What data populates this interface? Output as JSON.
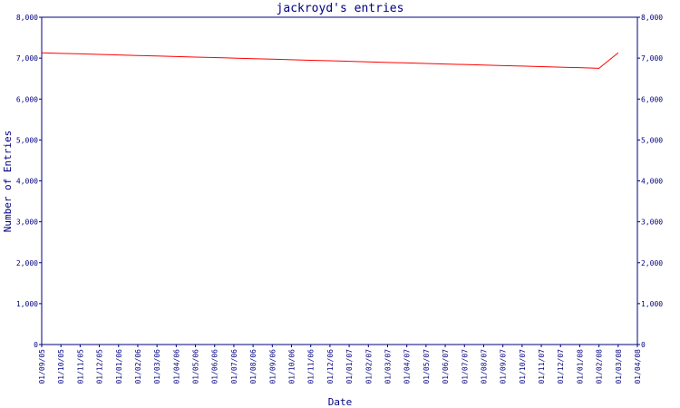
{
  "chart_data": {
    "type": "line",
    "title": "jackroyd's entries",
    "x_label": "Date",
    "y_label": "Number of Entries",
    "categories": [
      "01/09/05",
      "01/10/05",
      "01/11/05",
      "01/12/05",
      "01/01/06",
      "01/02/06",
      "01/03/06",
      "01/04/06",
      "01/05/06",
      "01/06/06",
      "01/07/06",
      "01/08/06",
      "01/09/06",
      "01/10/06",
      "01/11/06",
      "01/12/06",
      "01/01/07",
      "01/02/07",
      "01/03/07",
      "01/04/07",
      "01/05/07",
      "01/06/07",
      "01/07/07",
      "01/08/07",
      "01/09/07",
      "01/10/07",
      "01/11/07",
      "01/12/07",
      "01/01/08",
      "01/02/08",
      "01/03/08",
      "01/04/08"
    ],
    "series": [
      {
        "name": "entries",
        "color": "#ff0000",
        "values": [
          7130,
          7117,
          7104,
          7091,
          7078,
          7065,
          7052,
          7039,
          7026,
          7013,
          7000,
          6987,
          6974,
          6961,
          6948,
          6935,
          6922,
          6909,
          6896,
          6883,
          6870,
          6857,
          6844,
          6831,
          6818,
          6805,
          6792,
          6779,
          6766,
          6750,
          7130,
          null
        ]
      }
    ],
    "ylim": [
      0,
      8000
    ],
    "yticks": [
      0,
      {
        "value": 1000,
        "label": "1,000"
      },
      {
        "value": 2000,
        "label": "2,000"
      },
      {
        "value": 3000,
        "label": "3,000"
      },
      {
        "value": 4000,
        "label": "4,000"
      },
      {
        "value": 5000,
        "label": "5,000"
      },
      {
        "value": 6000,
        "label": "6,000"
      },
      {
        "value": 7000,
        "label": "7,000"
      },
      {
        "value": 8000,
        "label": "8,000"
      }
    ],
    "axis_color": "#000080"
  }
}
